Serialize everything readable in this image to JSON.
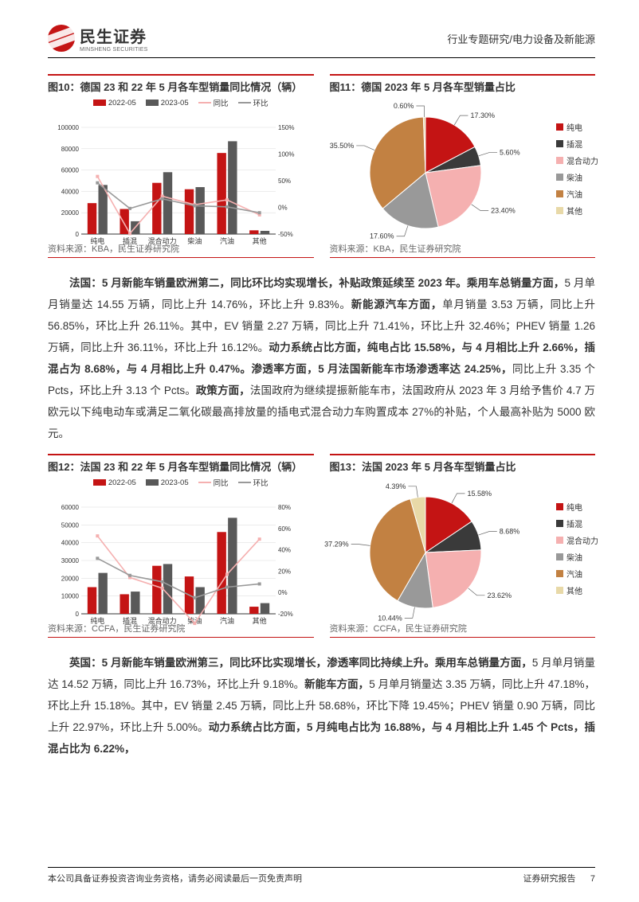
{
  "header": {
    "brand_cn": "民生证券",
    "brand_en": "MINSHENG SECURITIES",
    "category": "行业专题研究/电力设备及新能源"
  },
  "colors": {
    "accent": "#c41414",
    "c_2022": "#c41414",
    "c_2023": "#595959",
    "c_yoy": "#f5b0b0",
    "c_mom": "#999999",
    "pie": {
      "纯电": "#c41414",
      "插混": "#3a3a3a",
      "混合动力": "#f5b0b0",
      "柴油": "#999999",
      "汽油": "#c28142",
      "其他": "#e8d9a8"
    },
    "grid": "#d9d9d9",
    "axis": "#333333",
    "text": "#333333",
    "bg": "#ffffff"
  },
  "fig10": {
    "title": "图10：德国 23 和 22 年 5 月各车型销量同比情况（辆）",
    "legend": [
      "2022-05",
      "2023-05",
      "同比",
      "环比"
    ],
    "categories": [
      "纯电",
      "插混",
      "混合动力",
      "柴油",
      "汽油",
      "其他"
    ],
    "y_left": {
      "min": 0,
      "max": 100000,
      "step": 20000
    },
    "y_right": {
      "min": -50,
      "max": 150,
      "step": 50,
      "suffix": "%"
    },
    "bars_2022": [
      29000,
      23500,
      48000,
      42000,
      76000,
      3500
    ],
    "bars_2023": [
      46000,
      12000,
      58000,
      44000,
      87000,
      3000
    ],
    "yoy": [
      58,
      -49,
      21,
      5,
      14,
      -14
    ],
    "mom": [
      46,
      -2,
      16,
      3,
      1,
      -10
    ],
    "source": "资料来源：KBA，民生证券研究院"
  },
  "fig11": {
    "title": "图11：德国 2023 年 5 月各车型销量占比",
    "slices": [
      {
        "label": "纯电",
        "value": 17.3
      },
      {
        "label": "插混",
        "value": 5.6
      },
      {
        "label": "混合动力",
        "value": 23.4
      },
      {
        "label": "柴油",
        "value": 17.6
      },
      {
        "label": "汽油",
        "value": 35.5
      },
      {
        "label": "其他",
        "value": 0.6
      }
    ],
    "source": "资料来源：KBA，民生证券研究院"
  },
  "para1": "法国：5 月新能车销量欧洲第二，同比环比均实现增长，补贴政策延续至 2023 年。乘用车总销量方面，5 月单月销量达 14.55 万辆，同比上升 14.76%，环比上升 9.83%。新能源汽车方面，单月销量 3.53 万辆，同比上升 56.85%，环比上升 26.11%。其中，EV 销量 2.27 万辆，同比上升 71.41%，环比上升 32.46%；PHEV 销量 1.26 万辆，同比上升 36.11%，环比上升 16.12%。动力系统占比方面，纯电占比 15.58%，与 4 月相比上升 2.66%，插混占为 8.68%，与 4 月相比上升 0.47%。渗透率方面，5 月法国新能车市场渗透率达 24.25%，同比上升 3.35 个 Pcts，环比上升 3.13 个 Pcts。政策方面，法国政府为继续提振新能车市，法国政府从 2023 年 3 月给予售价 4.7 万欧元以下纯电动车或满足二氧化碳最高排放量的插电式混合动力车购置成本 27%的补贴，个人最高补贴为 5000 欧元。",
  "para1_bold": [
    "法国：5 月新能车销量欧洲第二，同比环比均实现增长，补贴政策延续至 2023 年。乘用车总销量方面，",
    "新能源汽车方面，",
    "动力系统占比方面，纯电占比 15.58%，与 4 月相比上升 2.66%，插混占为 8.68%，与 4 月相比上升 0.47%。渗透率方面，5 月法国新能车市场渗透率达 24.25%，",
    "政策方面，"
  ],
  "fig12": {
    "title": "图12：法国 23 和 22 年 5 月各车型销量同比情况（辆）",
    "legend": [
      "2022-05",
      "2023-05",
      "同比",
      "环比"
    ],
    "categories": [
      "纯电",
      "插混",
      "混合动力",
      "柴油",
      "汽油",
      "其他"
    ],
    "y_left": {
      "min": 0,
      "max": 60000,
      "step": 10000
    },
    "y_right": {
      "min": -20,
      "max": 80,
      "step": 20,
      "suffix": "%"
    },
    "bars_2022": [
      15000,
      11000,
      27000,
      21000,
      46000,
      4000
    ],
    "bars_2023": [
      23000,
      12500,
      28000,
      15000,
      54000,
      6000
    ],
    "yoy": [
      53,
      14,
      4,
      -29,
      17,
      50
    ],
    "mom": [
      32,
      16,
      10,
      -5,
      5,
      8
    ],
    "source": "资料来源：CCFA，民生证券研究院"
  },
  "fig13": {
    "title": "图13：法国 2023 年 5 月各车型销量占比",
    "slices": [
      {
        "label": "纯电",
        "value": 15.58
      },
      {
        "label": "插混",
        "value": 8.68
      },
      {
        "label": "混合动力",
        "value": 23.62
      },
      {
        "label": "柴油",
        "value": 10.44
      },
      {
        "label": "汽油",
        "value": 37.29
      },
      {
        "label": "其他",
        "value": 4.39
      }
    ],
    "source": "资料来源：CCFA，民生证券研究院"
  },
  "para2": "英国：5 月新能车销量欧洲第三，同比环比实现增长，渗透率同比持续上升。乘用车总销量方面，5 月单月销量达 14.52 万辆，同比上升 16.73%，环比上升 9.18%。新能车方面，5 月单月销量达 3.35 万辆，同比上升 47.18%，环比上升 15.18%。其中，EV 销量 2.45 万辆，同比上升 58.68%，环比下降 19.45%；PHEV 销量 0.90 万辆，同比上升 22.97%，环比上升 5.00%。动力系统占比方面，5 月纯电占比为 16.88%，与 4 月相比上升 1.45 个 Pcts，插混占比为 6.22%，",
  "footer": {
    "left": "本公司具备证券投资咨询业务资格，请务必阅读最后一页免责声明",
    "right_label": "证券研究报告",
    "page_no": "7"
  }
}
